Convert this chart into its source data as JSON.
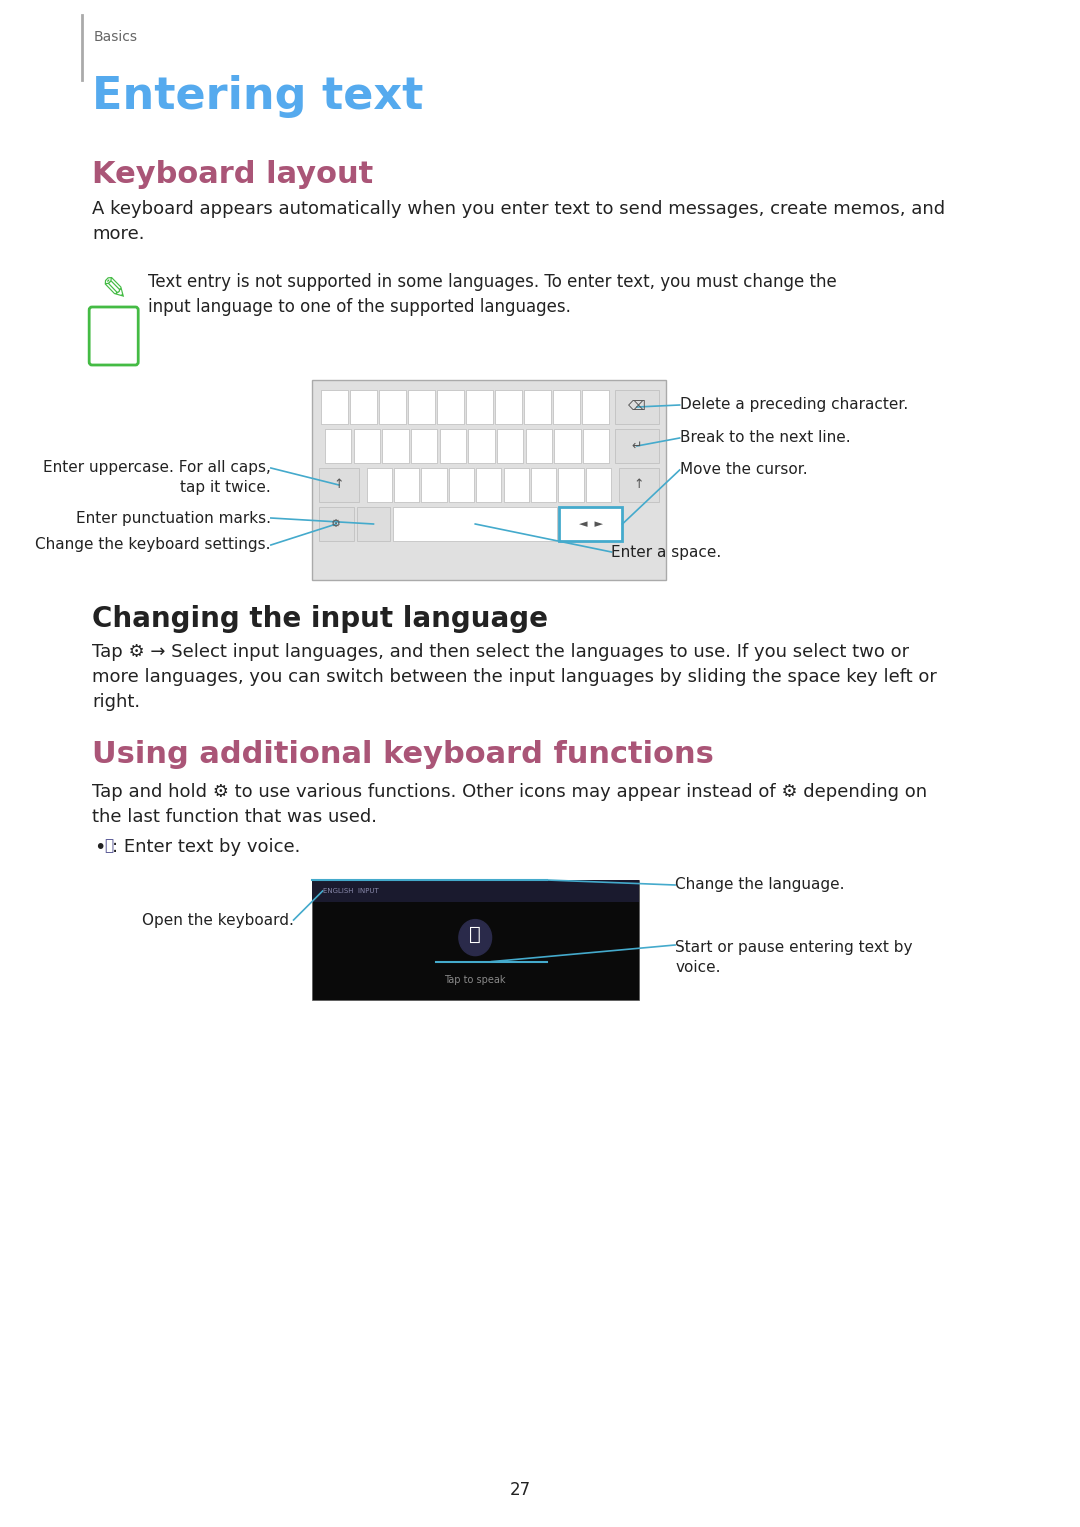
{
  "page_bg": "#ffffff",
  "sidebar_color": "#aaaaaa",
  "basics_text": "Basics",
  "basics_color": "#666666",
  "title": "Entering text",
  "title_color": "#55AAEE",
  "section1_title": "Keyboard layout",
  "section1_color": "#AA5577",
  "section1_body": "A keyboard appears automatically when you enter text to send messages, create memos, and\nmore.",
  "note_text": "Text entry is not supported in some languages. To enter text, you must change the\ninput language to one of the supported languages.",
  "note_icon_color": "#44BB44",
  "section2_title": "Changing the input language",
  "section2_body1": "Tap ⚙ → ",
  "section2_body2": "Select input languages",
  "section2_body3": ", and then select the languages to use. If you select two or\nmore languages, you can switch between the input languages by sliding the space key left or\nright.",
  "section3_title": "Using additional keyboard functions",
  "section3_color": "#AA5577",
  "section3_body": "Tap and hold ⚙ to use various functions. Other icons may appear instead of ⚙ depending on\nthe last function that was used.",
  "page_num": "27",
  "line_color": "#44AACC",
  "body_color": "#222222",
  "key_color": "#ffffff",
  "key_edge": "#bbbbbb",
  "key_dark": "#dddddd",
  "kbd_bg": "#e0e0e0"
}
